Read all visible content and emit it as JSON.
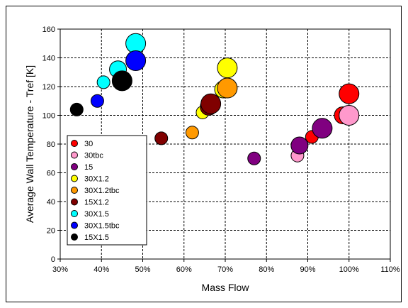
{
  "chart_data": {
    "type": "scatter",
    "title": "",
    "xlabel": "Mass Flow",
    "ylabel": "Average Wall Temperature - Tref [K]",
    "xlim": [
      0.3,
      1.1
    ],
    "ylim": [
      0,
      160
    ],
    "x_ticks": [
      "30%",
      "40%",
      "50%",
      "60%",
      "70%",
      "80%",
      "90%",
      "100%",
      "110%"
    ],
    "y_ticks": [
      "0",
      "20",
      "40",
      "60",
      "80",
      "100",
      "120",
      "140",
      "160"
    ],
    "grid": true,
    "legend_position": "bottom-left",
    "series": [
      {
        "name": "30",
        "color": "#ff0000",
        "points": [
          {
            "x": 0.91,
            "y": 85,
            "size": 1
          },
          {
            "x": 0.985,
            "y": 100,
            "size": 2
          },
          {
            "x": 1.0,
            "y": 115,
            "size": 3
          }
        ]
      },
      {
        "name": "30tbc",
        "color": "#ff99cc",
        "points": [
          {
            "x": 0.875,
            "y": 72,
            "size": 1
          },
          {
            "x": 1.0,
            "y": 100,
            "size": 3
          }
        ]
      },
      {
        "name": "15",
        "color": "#800080",
        "points": [
          {
            "x": 0.77,
            "y": 70,
            "size": 1
          },
          {
            "x": 0.88,
            "y": 79,
            "size": 2
          },
          {
            "x": 0.935,
            "y": 91,
            "size": 3
          }
        ]
      },
      {
        "name": "30X1.2",
        "color": "#ffff00",
        "points": [
          {
            "x": 0.645,
            "y": 102,
            "size": 1
          },
          {
            "x": 0.695,
            "y": 118,
            "size": 2
          },
          {
            "x": 0.705,
            "y": 133,
            "size": 3
          }
        ]
      },
      {
        "name": "30X1.2tbc",
        "color": "#ff9900",
        "points": [
          {
            "x": 0.62,
            "y": 88,
            "size": 1
          },
          {
            "x": 0.705,
            "y": 119,
            "size": 3
          }
        ]
      },
      {
        "name": "15X1.2",
        "color": "#800000",
        "points": [
          {
            "x": 0.545,
            "y": 84,
            "size": 1
          },
          {
            "x": 0.66,
            "y": 106,
            "size": 2
          },
          {
            "x": 0.665,
            "y": 108,
            "size": 3
          }
        ]
      },
      {
        "name": "30X1.5",
        "color": "#00ffff",
        "points": [
          {
            "x": 0.405,
            "y": 123,
            "size": 1
          },
          {
            "x": 0.44,
            "y": 132,
            "size": 2
          },
          {
            "x": 0.483,
            "y": 150,
            "size": 3
          }
        ]
      },
      {
        "name": "30X1.5tbc",
        "color": "#0000ff",
        "points": [
          {
            "x": 0.39,
            "y": 110,
            "size": 1
          },
          {
            "x": 0.483,
            "y": 138,
            "size": 3
          }
        ]
      },
      {
        "name": "15X1.5",
        "color": "#000000",
        "points": [
          {
            "x": 0.34,
            "y": 104,
            "size": 1
          },
          {
            "x": 0.45,
            "y": 124,
            "size": 3
          }
        ]
      }
    ]
  }
}
